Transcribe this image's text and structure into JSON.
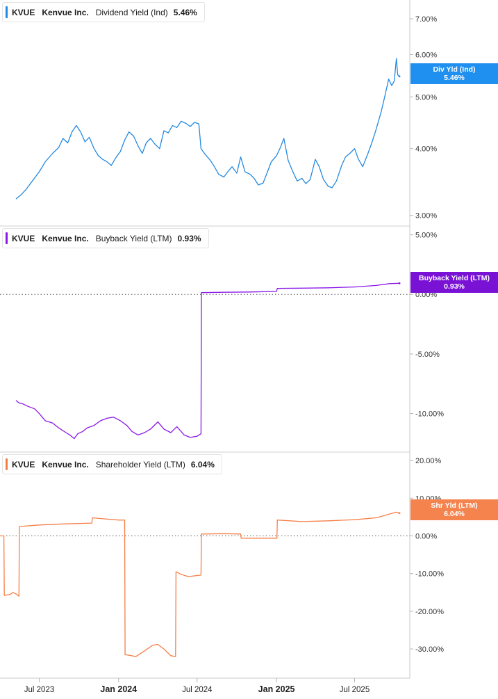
{
  "colors": {
    "div": "#2489e0",
    "buy": "#8a18e8",
    "shr": "#f47f46",
    "buy_badge": "#7a12d6",
    "shr_badge": "#f5834e",
    "div_badge": "#1f8ff0"
  },
  "x_axis": {
    "ticks": [
      {
        "label": "Jul 2023",
        "x": "2023-07-01",
        "bold": false
      },
      {
        "label": "Jan 2024",
        "x": "2024-01-01",
        "bold": true
      },
      {
        "label": "Jul 2024",
        "x": "2024-07-01",
        "bold": false
      },
      {
        "label": "Jan 2025",
        "x": "2025-01-01",
        "bold": true
      },
      {
        "label": "Jul 2025",
        "x": "2025-07-01",
        "bold": false
      }
    ]
  },
  "chart_data": [
    {
      "type": "line",
      "ticker": "KVUE",
      "company": "Kenvue Inc.",
      "metric": "Dividend Yield (Ind)",
      "value": "5.46%",
      "badge_line1": "Div Yld (Ind)",
      "badge_line2": "5.46%",
      "scale": "log",
      "ylim": [
        2.9,
        7.5
      ],
      "yticks": [
        {
          "v": 7,
          "label": "7.00%"
        },
        {
          "v": 6,
          "label": "6.00%"
        },
        {
          "v": 5,
          "label": "5.00%"
        },
        {
          "v": 4,
          "label": "4.00%"
        },
        {
          "v": 3,
          "label": "3.00%"
        }
      ],
      "zero_line": false,
      "series": [
        {
          "points": [
            [
              "2023-05-08",
              3.22
            ],
            [
              "2023-05-20",
              3.28
            ],
            [
              "2023-06-01",
              3.36
            ],
            [
              "2023-06-15",
              3.48
            ],
            [
              "2023-07-01",
              3.62
            ],
            [
              "2023-07-15",
              3.78
            ],
            [
              "2023-08-01",
              3.92
            ],
            [
              "2023-08-15",
              4.02
            ],
            [
              "2023-08-25",
              4.18
            ],
            [
              "2023-09-05",
              4.1
            ],
            [
              "2023-09-15",
              4.3
            ],
            [
              "2023-09-25",
              4.42
            ],
            [
              "2023-10-05",
              4.3
            ],
            [
              "2023-10-15",
              4.12
            ],
            [
              "2023-10-25",
              4.2
            ],
            [
              "2023-11-05",
              4.0
            ],
            [
              "2023-11-15",
              3.88
            ],
            [
              "2023-11-25",
              3.82
            ],
            [
              "2023-12-05",
              3.78
            ],
            [
              "2023-12-15",
              3.72
            ],
            [
              "2023-12-25",
              3.84
            ],
            [
              "2024-01-05",
              3.95
            ],
            [
              "2024-01-15",
              4.15
            ],
            [
              "2024-01-25",
              4.3
            ],
            [
              "2024-02-05",
              4.22
            ],
            [
              "2024-02-15",
              4.05
            ],
            [
              "2024-02-25",
              3.92
            ],
            [
              "2024-03-05",
              4.1
            ],
            [
              "2024-03-15",
              4.18
            ],
            [
              "2024-03-25",
              4.08
            ],
            [
              "2024-04-05",
              4.0
            ],
            [
              "2024-04-15",
              4.32
            ],
            [
              "2024-04-25",
              4.28
            ],
            [
              "2024-05-05",
              4.42
            ],
            [
              "2024-05-15",
              4.38
            ],
            [
              "2024-05-25",
              4.5
            ],
            [
              "2024-06-05",
              4.46
            ],
            [
              "2024-06-15",
              4.4
            ],
            [
              "2024-06-25",
              4.48
            ],
            [
              "2024-07-05",
              4.45
            ],
            [
              "2024-07-10",
              4.0
            ],
            [
              "2024-07-20",
              3.9
            ],
            [
              "2024-08-01",
              3.8
            ],
            [
              "2024-08-10",
              3.7
            ],
            [
              "2024-08-20",
              3.58
            ],
            [
              "2024-09-01",
              3.54
            ],
            [
              "2024-09-10",
              3.62
            ],
            [
              "2024-09-20",
              3.7
            ],
            [
              "2024-10-01",
              3.6
            ],
            [
              "2024-10-10",
              3.86
            ],
            [
              "2024-10-20",
              3.62
            ],
            [
              "2024-11-01",
              3.58
            ],
            [
              "2024-11-10",
              3.52
            ],
            [
              "2024-11-20",
              3.42
            ],
            [
              "2024-12-01",
              3.45
            ],
            [
              "2024-12-10",
              3.6
            ],
            [
              "2024-12-20",
              3.78
            ],
            [
              "2025-01-01",
              3.88
            ],
            [
              "2025-01-10",
              4.02
            ],
            [
              "2025-01-18",
              4.18
            ],
            [
              "2025-01-28",
              3.8
            ],
            [
              "2025-02-08",
              3.62
            ],
            [
              "2025-02-18",
              3.48
            ],
            [
              "2025-03-01",
              3.52
            ],
            [
              "2025-03-10",
              3.44
            ],
            [
              "2025-03-20",
              3.5
            ],
            [
              "2025-04-01",
              3.82
            ],
            [
              "2025-04-10",
              3.7
            ],
            [
              "2025-04-20",
              3.5
            ],
            [
              "2025-05-01",
              3.4
            ],
            [
              "2025-05-10",
              3.38
            ],
            [
              "2025-05-20",
              3.48
            ],
            [
              "2025-06-01",
              3.72
            ],
            [
              "2025-06-10",
              3.86
            ],
            [
              "2025-06-20",
              3.92
            ],
            [
              "2025-07-01",
              4.0
            ],
            [
              "2025-07-10",
              3.82
            ],
            [
              "2025-07-20",
              3.7
            ],
            [
              "2025-08-01",
              3.92
            ],
            [
              "2025-08-10",
              4.1
            ],
            [
              "2025-08-20",
              4.35
            ],
            [
              "2025-09-01",
              4.7
            ],
            [
              "2025-09-10",
              5.05
            ],
            [
              "2025-09-18",
              5.4
            ],
            [
              "2025-09-25",
              5.25
            ],
            [
              "2025-10-01",
              5.35
            ],
            [
              "2025-10-06",
              5.9
            ],
            [
              "2025-10-09",
              5.5
            ],
            [
              "2025-10-13",
              5.46
            ]
          ]
        }
      ]
    },
    {
      "type": "line",
      "ticker": "KVUE",
      "company": "Kenvue Inc.",
      "metric": "Buyback Yield (LTM)",
      "value": "0.93%",
      "badge_line1": "Buyback Yield (LTM)",
      "badge_line2": "0.93%",
      "scale": "linear",
      "ylim": [
        -13.0,
        5.5
      ],
      "yticks": [
        {
          "v": 5,
          "label": "5.00%"
        },
        {
          "v": 0,
          "label": "0.00%"
        },
        {
          "v": -5,
          "label": "-5.00%"
        },
        {
          "v": -10,
          "label": "-10.00%"
        }
      ],
      "zero_line": true,
      "series": [
        {
          "points": [
            [
              "2023-05-08",
              -8.9
            ],
            [
              "2023-05-15",
              -9.1
            ],
            [
              "2023-05-25",
              -9.2
            ],
            [
              "2023-06-05",
              -9.4
            ],
            [
              "2023-06-20",
              -9.6
            ],
            [
              "2023-07-01",
              -10.0
            ],
            [
              "2023-07-15",
              -10.6
            ],
            [
              "2023-08-01",
              -10.8
            ],
            [
              "2023-08-15",
              -11.2
            ],
            [
              "2023-09-01",
              -11.6
            ],
            [
              "2023-09-10",
              -11.8
            ],
            [
              "2023-09-20",
              -12.1
            ],
            [
              "2023-09-28",
              -11.7
            ],
            [
              "2023-10-10",
              -11.5
            ],
            [
              "2023-10-20",
              -11.2
            ],
            [
              "2023-11-05",
              -11.0
            ],
            [
              "2023-11-20",
              -10.6
            ],
            [
              "2023-12-05",
              -10.4
            ],
            [
              "2023-12-20",
              -10.3
            ],
            [
              "2024-01-05",
              -10.6
            ],
            [
              "2024-01-20",
              -11.0
            ],
            [
              "2024-02-01",
              -11.5
            ],
            [
              "2024-02-15",
              -11.8
            ],
            [
              "2024-03-01",
              -11.6
            ],
            [
              "2024-03-15",
              -11.3
            ],
            [
              "2024-04-01",
              -10.7
            ],
            [
              "2024-04-15",
              -11.3
            ],
            [
              "2024-05-01",
              -11.6
            ],
            [
              "2024-05-15",
              -11.1
            ],
            [
              "2024-06-01",
              -11.8
            ],
            [
              "2024-06-15",
              -12.0
            ],
            [
              "2024-07-01",
              -11.9
            ],
            [
              "2024-07-10",
              -11.7
            ],
            [
              "2024-07-11",
              0.15
            ],
            [
              "2024-09-01",
              0.18
            ],
            [
              "2024-11-01",
              0.2
            ],
            [
              "2025-01-01",
              0.25
            ],
            [
              "2025-01-03",
              0.5
            ],
            [
              "2025-03-01",
              0.52
            ],
            [
              "2025-05-01",
              0.55
            ],
            [
              "2025-07-01",
              0.62
            ],
            [
              "2025-08-20",
              0.75
            ],
            [
              "2025-09-20",
              0.9
            ],
            [
              "2025-10-13",
              0.93
            ]
          ]
        }
      ]
    },
    {
      "type": "line",
      "ticker": "KVUE",
      "company": "Kenvue Inc.",
      "metric": "Shareholder Yield (LTM)",
      "value": "6.04%",
      "badge_line1": "Shr Yld (LTM)",
      "badge_line2": "6.04%",
      "scale": "linear",
      "ylim": [
        -37.0,
        21.5
      ],
      "yticks": [
        {
          "v": 20,
          "label": "20.00%"
        },
        {
          "v": 10,
          "label": "10.00%"
        },
        {
          "v": 0,
          "label": "0.00%"
        },
        {
          "v": -10,
          "label": "-10.00%"
        },
        {
          "v": -20,
          "label": "-20.00%"
        },
        {
          "v": -30,
          "label": "-30.00%"
        }
      ],
      "zero_line": true,
      "series": [
        {
          "points": [
            [
              "2023-04-01",
              0.0
            ],
            [
              "2023-04-10",
              0.0
            ],
            [
              "2023-04-11",
              -15.8
            ],
            [
              "2023-04-25",
              -15.5
            ],
            [
              "2023-05-01",
              -15.0
            ],
            [
              "2023-05-10",
              -15.5
            ],
            [
              "2023-05-15",
              -16.0
            ],
            [
              "2023-05-16",
              2.5
            ],
            [
              "2023-07-01",
              2.9
            ],
            [
              "2023-09-01",
              3.2
            ],
            [
              "2023-10-31",
              3.4
            ],
            [
              "2023-11-01",
              4.8
            ],
            [
              "2023-12-01",
              4.5
            ],
            [
              "2024-01-01",
              4.2
            ],
            [
              "2024-01-15",
              4.2
            ],
            [
              "2024-01-16",
              -31.5
            ],
            [
              "2024-02-10",
              -32.0
            ],
            [
              "2024-03-01",
              -30.5
            ],
            [
              "2024-03-20",
              -29.0
            ],
            [
              "2024-04-01",
              -28.8
            ],
            [
              "2024-04-15",
              -30.0
            ],
            [
              "2024-05-01",
              -31.8
            ],
            [
              "2024-05-12",
              -32.0
            ],
            [
              "2024-05-13",
              -9.5
            ],
            [
              "2024-05-25",
              -10.2
            ],
            [
              "2024-06-10",
              -10.8
            ],
            [
              "2024-07-10",
              -10.4
            ],
            [
              "2024-07-11",
              0.5
            ],
            [
              "2024-09-01",
              0.6
            ],
            [
              "2024-10-10",
              0.5
            ],
            [
              "2024-10-11",
              -0.6
            ],
            [
              "2024-12-01",
              -0.6
            ],
            [
              "2025-01-02",
              -0.6
            ],
            [
              "2025-01-03",
              4.2
            ],
            [
              "2025-03-01",
              3.8
            ],
            [
              "2025-05-01",
              4.0
            ],
            [
              "2025-07-01",
              4.3
            ],
            [
              "2025-08-20",
              4.8
            ],
            [
              "2025-09-20",
              5.8
            ],
            [
              "2025-10-05",
              6.3
            ],
            [
              "2025-10-13",
              6.04
            ]
          ]
        }
      ]
    }
  ]
}
